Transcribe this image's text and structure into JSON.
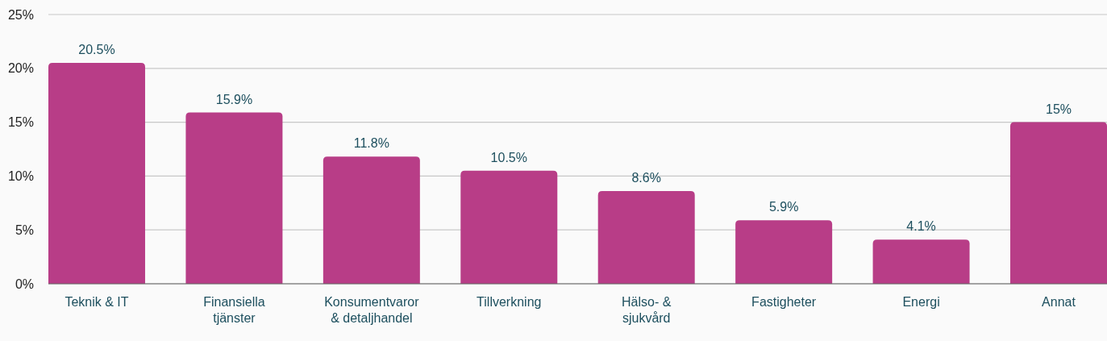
{
  "chart_data": {
    "type": "bar",
    "categories": [
      "Teknik & IT",
      "Finansiella tjänster",
      "Konsumentvaror & detaljhandel",
      "Tillverkning",
      "Hälso- & sjukvård",
      "Fastigheter",
      "Energi",
      "Annat"
    ],
    "values": [
      20.5,
      15.9,
      11.8,
      10.5,
      8.6,
      5.9,
      4.1,
      15
    ],
    "value_labels": [
      "20.5%",
      "15.9%",
      "11.8%",
      "10.5%",
      "8.6%",
      "5.9%",
      "4.1%",
      "15%"
    ],
    "color": "#b83d87",
    "ylim": [
      0,
      25
    ],
    "yticks": [
      {
        "value": 0,
        "label": "0%"
      },
      {
        "value": 5,
        "label": "5%"
      },
      {
        "value": 10,
        "label": "10%"
      },
      {
        "value": 15,
        "label": "15%"
      },
      {
        "value": 20,
        "label": "20%"
      },
      {
        "value": 25,
        "label": "25%"
      }
    ],
    "grid": "y"
  }
}
